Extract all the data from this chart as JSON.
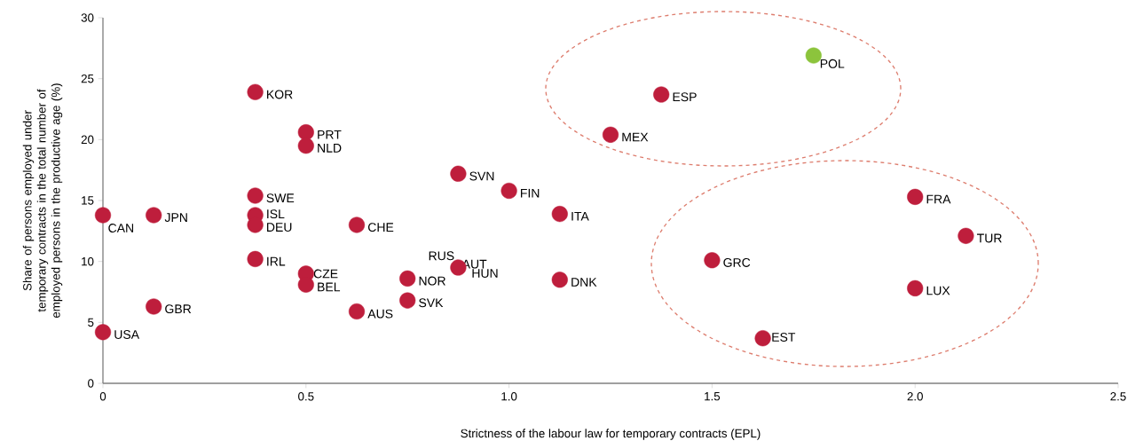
{
  "chart_data": {
    "type": "scatter",
    "xlabel": "Strictness of the labour law for temporary contracts (EPL)",
    "ylabel": "Share of persons employed under temporary contracts in the total number of employed persons in the productive age (%)",
    "x": [
      0.375,
      0.5,
      0.5,
      0.375,
      0.375,
      0.375,
      0.375,
      0,
      0.125,
      0.125,
      0,
      0.625,
      0.5,
      0.5,
      0.625,
      0.75,
      0.75,
      0.875,
      null,
      0.875,
      null,
      1.0,
      1.125,
      1.125,
      1.25,
      1.375,
      1.75,
      1.5,
      1.625,
      2.0,
      2.125,
      2.0
    ],
    "values": [
      23.9,
      20.6,
      19.5,
      15.4,
      13.8,
      13.0,
      10.2,
      13.8,
      13.8,
      6.3,
      4.2,
      13.0,
      9.0,
      8.1,
      5.9,
      6.8,
      8.6,
      17.2,
      null,
      9.5,
      null,
      15.8,
      13.9,
      8.5,
      20.4,
      23.7,
      26.9,
      10.1,
      3.7,
      15.3,
      12.1,
      7.8
    ],
    "colors": [
      "#be1e3c",
      "#be1e3c",
      "#be1e3c",
      "#be1e3c",
      "#be1e3c",
      "#be1e3c",
      "#be1e3c",
      "#be1e3c",
      "#be1e3c",
      "#be1e3c",
      "#be1e3c",
      "#be1e3c",
      "#be1e3c",
      "#be1e3c",
      "#be1e3c",
      "#be1e3c",
      "#be1e3c",
      "#be1e3c",
      "#be1e3c",
      "#be1e3c",
      "#be1e3c",
      "#be1e3c",
      "#be1e3c",
      "#be1e3c",
      "#be1e3c",
      "#be1e3c",
      "#8cc43c",
      "#be1e3c",
      "#be1e3c",
      "#be1e3c",
      "#be1e3c",
      "#be1e3c"
    ],
    "marker": "circle",
    "xlim": [
      0,
      2.5
    ],
    "xticks": [
      0,
      0.5,
      {
        "value": 1,
        "label": "1.0"
      },
      1.5,
      {
        "value": 2,
        "label": "2.0"
      },
      2.5
    ],
    "ylim": [
      0,
      30
    ],
    "yticks": [
      0,
      5,
      10,
      15,
      20,
      25,
      30
    ],
    "annotations": [
      {
        "text": "KOR",
        "x": 0.375,
        "y": 23.9
      },
      {
        "text": "PRT",
        "x": 0.5,
        "y": 20.6
      },
      {
        "text": "NLD",
        "x": 0.5,
        "y": 19.5
      },
      {
        "text": "SWE",
        "x": 0.375,
        "y": 15.4
      },
      {
        "text": "ISL",
        "x": 0.375,
        "y": 13.8
      },
      {
        "text": "DEU",
        "x": 0.375,
        "y": 13.0
      },
      {
        "text": "IRL",
        "x": 0.375,
        "y": 10.2
      },
      {
        "text": "CAN",
        "x": 0,
        "y": 13.8
      },
      {
        "text": "JPN",
        "x": 0.125,
        "y": 13.8
      },
      {
        "text": "GBR",
        "x": 0.125,
        "y": 6.3
      },
      {
        "text": "USA",
        "x": 0,
        "y": 4.2
      },
      {
        "text": "CHE",
        "x": 0.625,
        "y": 13.0
      },
      {
        "text": "CZE",
        "x": 0.5,
        "y": 9.0
      },
      {
        "text": "BEL",
        "x": 0.5,
        "y": 8.1
      },
      {
        "text": "AUS",
        "x": 0.625,
        "y": 5.9
      },
      {
        "text": "SVK",
        "x": 0.75,
        "y": 6.8
      },
      {
        "text": "NOR",
        "x": 0.75,
        "y": 8.6
      },
      {
        "text": "SVN",
        "x": 0.875,
        "y": 17.2
      },
      {
        "text": "RUS",
        "x": 0.875,
        "y": 9.5
      },
      {
        "text": "AUT",
        "x": 0.875,
        "y": 9.5
      },
      {
        "text": "HUN",
        "x": 0.875,
        "y": 9.5
      },
      {
        "text": "FIN",
        "x": 1.0,
        "y": 15.8
      },
      {
        "text": "ITA",
        "x": 1.125,
        "y": 13.9
      },
      {
        "text": "DNK",
        "x": 1.125,
        "y": 8.5
      },
      {
        "text": "MEX",
        "x": 1.25,
        "y": 20.4
      },
      {
        "text": "ESP",
        "x": 1.375,
        "y": 23.7
      },
      {
        "text": "POL",
        "x": 1.75,
        "y": 26.9
      },
      {
        "text": "GRC",
        "x": 1.5,
        "y": 10.1
      },
      {
        "text": "EST",
        "x": 1.625,
        "y": 3.7
      },
      {
        "text": "FRA",
        "x": 2.0,
        "y": 15.3
      },
      {
        "text": "TUR",
        "x": 2.125,
        "y": 12.1
      },
      {
        "text": "LUX",
        "x": 2.0,
        "y": 7.8
      }
    ]
  }
}
